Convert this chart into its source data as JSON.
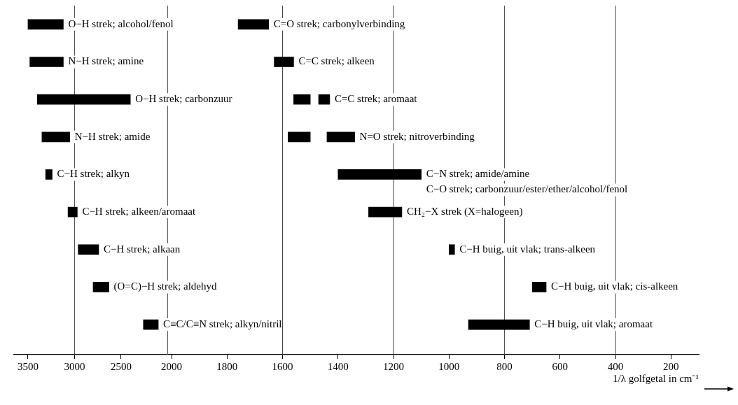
{
  "chart_data": [
    {
      "type": "bar",
      "orientation": "horizontal",
      "categories": [
        null,
        null,
        null,
        null,
        null,
        null,
        null,
        null,
        null
      ],
      "xlim": [
        3650,
        1950
      ],
      "xticks": [
        3500,
        3000,
        2500
      ],
      "legend": false,
      "ref_lines": [
        {
          "axis": "x",
          "value": 3000
        },
        {
          "axis": "x",
          "value": 2000
        }
      ],
      "series": [
        {
          "name": "O−H strek; alcohol/fenol",
          "color": "#000000",
          "values": [
            380,
            null,
            null,
            null,
            null,
            null,
            null,
            null,
            null
          ],
          "base": [
            3120,
            null,
            null,
            null,
            null,
            null,
            null,
            null,
            null
          ]
        },
        {
          "name": "N−H strek; amine",
          "color": "#000000",
          "values": [
            null,
            360,
            null,
            null,
            null,
            null,
            null,
            null,
            null
          ],
          "base": [
            null,
            3120,
            null,
            null,
            null,
            null,
            null,
            null,
            null
          ]
        },
        {
          "name": "O−H strek; carbonzuur",
          "color": "#000000",
          "values": [
            null,
            null,
            1000,
            null,
            null,
            null,
            null,
            null,
            null
          ],
          "base": [
            null,
            null,
            2400,
            null,
            null,
            null,
            null,
            null,
            null
          ]
        },
        {
          "name": "N−H strek; amide",
          "color": "#000000",
          "values": [
            null,
            null,
            null,
            300,
            null,
            null,
            null,
            null,
            null
          ],
          "base": [
            null,
            null,
            null,
            3050,
            null,
            null,
            null,
            null,
            null
          ]
        },
        {
          "name": "C−H strek; alkyn",
          "color": "#000000",
          "values": [
            null,
            null,
            null,
            null,
            70,
            null,
            null,
            null,
            null
          ],
          "base": [
            null,
            null,
            null,
            null,
            3240,
            null,
            null,
            null,
            null
          ]
        },
        {
          "name": "C−H strek; alkeen/aromaat",
          "color": "#000000",
          "values": [
            null,
            null,
            null,
            null,
            null,
            100,
            null,
            null,
            null
          ],
          "base": [
            null,
            null,
            null,
            null,
            null,
            2970,
            null,
            null,
            null
          ]
        },
        {
          "name": "C−H strek; alkaan",
          "color": "#000000",
          "values": [
            null,
            null,
            null,
            null,
            null,
            null,
            220,
            null,
            null
          ],
          "base": [
            null,
            null,
            null,
            null,
            null,
            null,
            2740,
            null,
            null
          ]
        },
        {
          "name": "(O=C)−H strek; aldehyd",
          "color": "#000000",
          "values": [
            null,
            null,
            null,
            null,
            null,
            null,
            null,
            170,
            null
          ],
          "base": [
            null,
            null,
            null,
            null,
            null,
            null,
            null,
            2630,
            null
          ]
        },
        {
          "name": "C≡C/C≡N strek; alkyn/nitril",
          "color": "#000000",
          "values": [
            null,
            null,
            null,
            null,
            null,
            null,
            null,
            null,
            160
          ],
          "base": [
            null,
            null,
            null,
            null,
            null,
            null,
            null,
            null,
            2100
          ]
        }
      ]
    },
    {
      "type": "bar",
      "orientation": "horizontal",
      "categories": [
        null,
        null,
        null,
        null,
        null,
        null,
        null,
        null,
        null
      ],
      "xlim": [
        2000,
        100
      ],
      "xticks": [
        2000,
        1800,
        1600,
        1400,
        1200,
        1000,
        800,
        600,
        400,
        200
      ],
      "xlabel": "1/λ golfgetal in cm⁻¹",
      "legend": false,
      "ref_lines": [
        {
          "axis": "x",
          "value": 1600
        },
        {
          "axis": "x",
          "value": 1200
        },
        {
          "axis": "x",
          "value": 800
        },
        {
          "axis": "x",
          "value": 400
        }
      ],
      "series": [
        {
          "name": "C=O strek; carbonylverbinding",
          "color": "#000000",
          "values": [
            110,
            null,
            null,
            null,
            null,
            null,
            null,
            null,
            null
          ],
          "base": [
            1650,
            null,
            null,
            null,
            null,
            null,
            null,
            null,
            null
          ]
        },
        {
          "name": "C=C strek; alkeen",
          "color": "#000000",
          "values": [
            null,
            70,
            null,
            null,
            null,
            null,
            null,
            null,
            null
          ],
          "base": [
            null,
            1560,
            null,
            null,
            null,
            null,
            null,
            null,
            null
          ]
        },
        {
          "color": "#000000",
          "values": [
            null,
            null,
            60,
            null,
            null,
            null,
            null,
            null,
            null
          ],
          "base": [
            null,
            null,
            1500,
            null,
            null,
            null,
            null,
            null,
            null
          ]
        },
        {
          "name": "C=C strek; aromaat",
          "color": "#000000",
          "values": [
            null,
            null,
            40,
            null,
            null,
            null,
            null,
            null,
            null
          ],
          "base": [
            null,
            null,
            1430,
            null,
            null,
            null,
            null,
            null,
            null
          ]
        },
        {
          "color": "#000000",
          "values": [
            null,
            null,
            null,
            80,
            null,
            null,
            null,
            null,
            null
          ],
          "base": [
            null,
            null,
            null,
            1500,
            null,
            null,
            null,
            null,
            null
          ]
        },
        {
          "name": "N=O strek; nitroverbinding",
          "color": "#000000",
          "values": [
            null,
            null,
            null,
            100,
            null,
            null,
            null,
            null,
            null
          ],
          "base": [
            null,
            null,
            null,
            1340,
            null,
            null,
            null,
            null,
            null
          ]
        },
        {
          "name": "C−N strek; amide/amine\nC−O strek; carbonzuur/ester/ether/alcohol/fenol",
          "color": "#000000",
          "values": [
            null,
            null,
            null,
            null,
            300,
            null,
            null,
            null,
            null
          ],
          "base": [
            null,
            null,
            null,
            null,
            1100,
            null,
            null,
            null,
            null
          ]
        },
        {
          "name": "CH₂−X strek (X=halogeen)",
          "color": "#000000",
          "values": [
            null,
            null,
            null,
            null,
            null,
            120,
            null,
            null,
            null
          ],
          "base": [
            null,
            null,
            null,
            null,
            null,
            1170,
            null,
            null,
            null
          ]
        },
        {
          "name": "C−H buig, uit vlak; trans-alkeen",
          "color": "#000000",
          "values": [
            null,
            null,
            null,
            null,
            null,
            null,
            20,
            null,
            null
          ],
          "base": [
            null,
            null,
            null,
            null,
            null,
            null,
            980,
            null,
            null
          ]
        },
        {
          "name": "C−H buig, uit vlak; cis-alkeen",
          "color": "#000000",
          "values": [
            null,
            null,
            null,
            null,
            null,
            null,
            null,
            50,
            null
          ],
          "base": [
            null,
            null,
            null,
            null,
            null,
            null,
            null,
            650,
            null
          ]
        },
        {
          "name": "C−H buig, uit vlak; aromaat",
          "color": "#000000",
          "values": [
            null,
            null,
            null,
            null,
            null,
            null,
            null,
            null,
            220
          ],
          "base": [
            null,
            null,
            null,
            null,
            null,
            null,
            null,
            null,
            710
          ]
        }
      ]
    }
  ]
}
